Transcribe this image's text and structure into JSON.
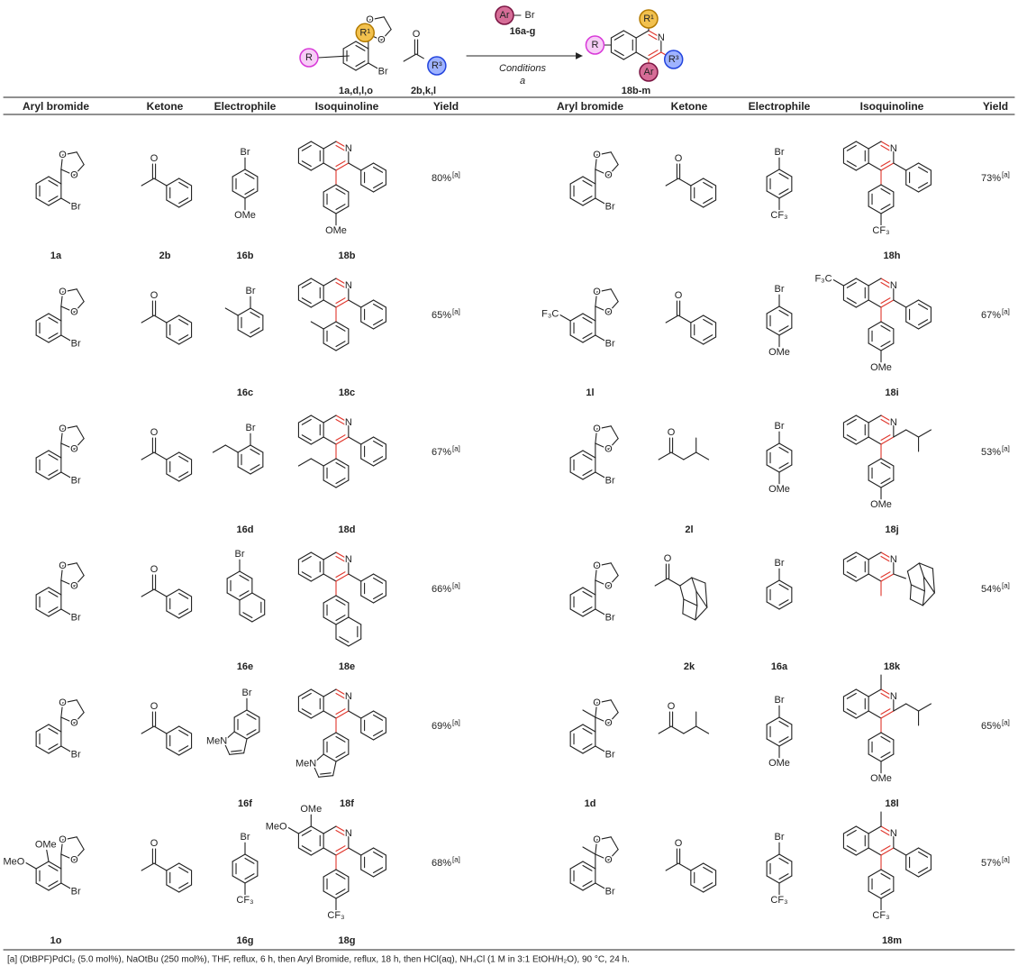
{
  "scheme": {
    "reactant": {
      "atoms": [
        "R",
        "R¹",
        "O",
        "O",
        "Br"
      ],
      "label": "1a,d,l,o"
    },
    "ketone": {
      "atoms": [
        "O",
        "R³"
      ],
      "label": "2b,k,l"
    },
    "reagent": {
      "atoms": [
        "Ar",
        "Br"
      ],
      "label": "16a-g"
    },
    "conditions": "Conditions",
    "conditions_note": "a",
    "product": {
      "atoms": [
        "R¹",
        "N",
        "R",
        "R³",
        "Ar"
      ],
      "label": "18b-m"
    }
  },
  "table": {
    "headers": [
      "Aryl bromide",
      "Ketone",
      "Electrophile",
      "Isoquinoline",
      "Yield",
      "Aryl bromide",
      "Ketone",
      "Electrophile",
      "Isoquinoline",
      "Yield"
    ],
    "rows": [
      [
        {
          "label": "1a",
          "atoms": [
            "O",
            "O",
            "Br"
          ]
        },
        {
          "label": "2b",
          "atoms": [
            "O"
          ]
        },
        {
          "label": "16b",
          "atoms": [
            "Br",
            "OMe"
          ]
        },
        {
          "label": "18b",
          "atoms": [
            "N",
            "OMe"
          ]
        },
        {
          "yield": "80%",
          "note": "[a]"
        },
        {
          "atoms": [
            "O",
            "O",
            "Br"
          ]
        },
        {
          "atoms": [
            "O"
          ]
        },
        {
          "atoms": [
            "Br",
            "CF₃"
          ]
        },
        {
          "label": "18h",
          "atoms": [
            "N",
            "CF₃"
          ]
        },
        {
          "yield": "73%",
          "note": "[a]"
        }
      ],
      [
        {
          "atoms": [
            "O",
            "O",
            "Br"
          ]
        },
        {
          "atoms": [
            "O"
          ]
        },
        {
          "label": "16c",
          "atoms": [
            "Br"
          ]
        },
        {
          "label": "18c",
          "atoms": [
            "N"
          ]
        },
        {
          "yield": "65%",
          "note": "[a]"
        },
        {
          "label": "1l",
          "atoms": [
            "F₃C",
            "O",
            "O",
            "Br"
          ]
        },
        {
          "atoms": [
            "O"
          ]
        },
        {
          "atoms": [
            "Br",
            "OMe"
          ]
        },
        {
          "label": "18i",
          "atoms": [
            "N",
            "F₃C",
            "OMe"
          ]
        },
        {
          "yield": "67%",
          "note": "[a]"
        }
      ],
      [
        {
          "atoms": [
            "O",
            "O",
            "Br"
          ]
        },
        {
          "atoms": [
            "O"
          ]
        },
        {
          "label": "16d",
          "atoms": [
            "Br"
          ]
        },
        {
          "label": "18d",
          "atoms": [
            "N"
          ]
        },
        {
          "yield": "67%",
          "note": "[a]"
        },
        {
          "atoms": [
            "O",
            "O",
            "Br"
          ]
        },
        {
          "label": "2l",
          "atoms": [
            "O"
          ]
        },
        {
          "atoms": [
            "Br",
            "OMe"
          ]
        },
        {
          "label": "18j",
          "atoms": [
            "N",
            "OMe"
          ]
        },
        {
          "yield": "53%",
          "note": "[a]"
        }
      ],
      [
        {
          "atoms": [
            "O",
            "O",
            "Br"
          ]
        },
        {
          "atoms": [
            "O"
          ]
        },
        {
          "label": "16e",
          "atoms": [
            "Br"
          ]
        },
        {
          "label": "18e",
          "atoms": [
            "N"
          ]
        },
        {
          "yield": "66%",
          "note": "[a]"
        },
        {
          "atoms": [
            "O",
            "O",
            "Br"
          ]
        },
        {
          "label": "2k",
          "atoms": [
            "O"
          ]
        },
        {
          "label": "16a",
          "atoms": [
            "Br"
          ]
        },
        {
          "label": "18k",
          "atoms": [
            "N"
          ]
        },
        {
          "yield": "54%",
          "note": "[a]"
        }
      ],
      [
        {
          "atoms": [
            "O",
            "O",
            "Br"
          ]
        },
        {
          "atoms": [
            "O"
          ]
        },
        {
          "label": "16f",
          "atoms": [
            "Br",
            "MeN"
          ]
        },
        {
          "label": "18f",
          "atoms": [
            "N",
            "MeN"
          ]
        },
        {
          "yield": "69%",
          "note": "[a]"
        },
        {
          "label": "1d",
          "atoms": [
            "O",
            "O",
            "Br"
          ]
        },
        {
          "atoms": [
            "O"
          ]
        },
        {
          "atoms": [
            "Br",
            "OMe"
          ]
        },
        {
          "label": "18l",
          "atoms": [
            "N",
            "OMe"
          ]
        },
        {
          "yield": "65%",
          "note": "[a]"
        }
      ],
      [
        {
          "label": "1o",
          "atoms": [
            "OMe",
            "MeO",
            "O",
            "O",
            "Br"
          ]
        },
        {
          "atoms": [
            "O"
          ]
        },
        {
          "label": "16g",
          "atoms": [
            "Br",
            "CF₃"
          ]
        },
        {
          "label": "18g",
          "atoms": [
            "N",
            "OMe",
            "MeO",
            "CF₃"
          ]
        },
        {
          "yield": "68%",
          "note": "[a]"
        },
        {
          "atoms": [
            "O",
            "O",
            "Br"
          ]
        },
        {
          "atoms": [
            "O"
          ]
        },
        {
          "atoms": [
            "Br",
            "CF₃"
          ]
        },
        {
          "label": "18m",
          "atoms": [
            "N",
            "CF₃"
          ]
        },
        {
          "yield": "57%",
          "note": "[a]"
        }
      ]
    ]
  },
  "footnote": "[a] (DtBPF)PdCl₂ (5.0 mol%), NaOtBu (250 mol%), THF, reflux, 6 h, then Aryl Bromide, reflux, 18 h, then HCl(aq), NH₄Cl (1 M in 3:1 EtOH/H₂O), 90 °C, 24 h."
}
